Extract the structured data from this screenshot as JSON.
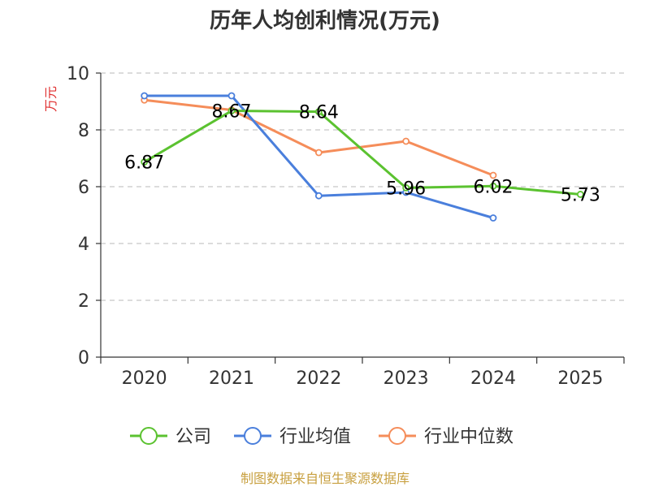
{
  "chart_data": {
    "type": "line",
    "title": "历年人均创利情况(万元)",
    "ylabel": "万元",
    "xlabel": "",
    "categories": [
      "2020",
      "2021",
      "2022",
      "2023",
      "2024",
      "2025"
    ],
    "ylim": [
      0,
      10
    ],
    "yticks": [
      0,
      2,
      4,
      6,
      8,
      10
    ],
    "grid": true,
    "legend_position": "bottom",
    "series": [
      {
        "name": "公司",
        "color": "#5bc230",
        "values": [
          6.87,
          8.67,
          8.64,
          5.96,
          6.02,
          5.73
        ],
        "labels": [
          "6.87",
          "8.67",
          "8.64",
          "5.96",
          "6.02",
          "5.73"
        ]
      },
      {
        "name": "行业均值",
        "color": "#4a7fdc",
        "values": [
          9.2,
          9.2,
          5.68,
          5.8,
          4.9,
          null
        ]
      },
      {
        "name": "行业中位数",
        "color": "#f58d5a",
        "values": [
          9.05,
          8.7,
          7.2,
          7.6,
          6.4,
          null
        ]
      }
    ]
  },
  "source": "制图数据来自恒生聚源数据库"
}
